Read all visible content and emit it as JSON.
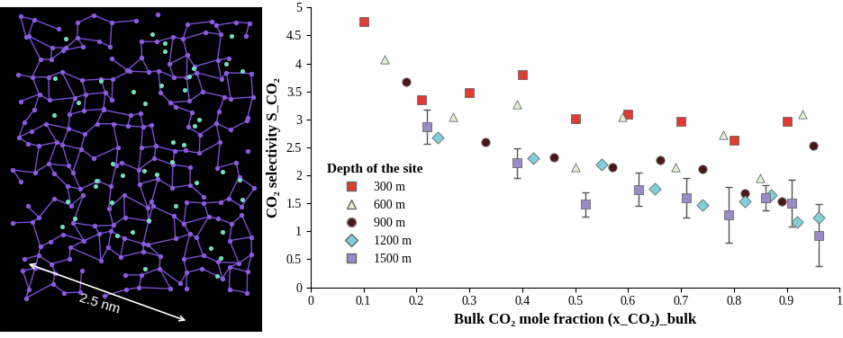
{
  "chart_data": {
    "type": "scatter",
    "x_label": "Bulk CO₂ mole fraction (x_CO₂)_bulk",
    "y_label": "CO₂ selectivity S_CO₂",
    "legend_title": "Depth of the site",
    "legend": "lower left",
    "xlim": [
      0,
      1
    ],
    "xticks": [
      0,
      0.1,
      0.2,
      0.3,
      0.4,
      0.5,
      0.6,
      0.7,
      0.8,
      0.9,
      1
    ],
    "ylim": [
      0,
      5
    ],
    "yticks": [
      0,
      0.5,
      1,
      1.5,
      2,
      2.5,
      3,
      3.5,
      4,
      4.5,
      5
    ],
    "grid": false,
    "series": [
      {
        "name": "300 m",
        "color": "#e03c31",
        "marker": "square",
        "x": [
          0.1,
          0.21,
          0.3,
          0.4,
          0.5,
          0.6,
          0.7,
          0.8,
          0.9
        ],
        "values": [
          4.75,
          3.35,
          3.48,
          3.8,
          3.02,
          3.1,
          2.97,
          2.62,
          2.97
        ]
      },
      {
        "name": "600 m",
        "color": "#e2f2d4",
        "marker": "triangle",
        "x": [
          0.14,
          0.27,
          0.39,
          0.5,
          0.59,
          0.69,
          0.78,
          0.85,
          0.93
        ],
        "values": [
          4.07,
          3.05,
          3.27,
          2.15,
          3.05,
          2.15,
          2.72,
          1.95,
          3.1
        ]
      },
      {
        "name": "900 m",
        "color": "#4a1818",
        "marker": "circle",
        "x": [
          0.18,
          0.33,
          0.46,
          0.57,
          0.66,
          0.74,
          0.82,
          0.89,
          0.95
        ],
        "values": [
          3.67,
          2.6,
          2.33,
          2.14,
          2.28,
          2.11,
          1.68,
          1.53,
          2.53
        ]
      },
      {
        "name": "1200 m",
        "color": "#7fd0d8",
        "marker": "diamond",
        "x": [
          0.24,
          0.42,
          0.55,
          0.65,
          0.74,
          0.82,
          0.87,
          0.92,
          0.96
        ],
        "values": [
          2.67,
          2.3,
          2.19,
          1.76,
          1.47,
          1.53,
          1.65,
          1.17,
          1.25
        ]
      },
      {
        "name": "1500 m",
        "color": "#9a8ac8",
        "marker": "square",
        "x": [
          0.22,
          0.39,
          0.52,
          0.62,
          0.71,
          0.79,
          0.86,
          0.91,
          0.96
        ],
        "values": [
          2.87,
          2.22,
          1.48,
          1.75,
          1.6,
          1.3,
          1.6,
          1.5,
          0.93
        ],
        "errors": [
          0.3,
          0.27,
          0.22,
          0.3,
          0.35,
          0.5,
          0.22,
          0.42,
          0.55
        ]
      }
    ]
  },
  "image": {
    "scale_label": "2.5 nm"
  }
}
